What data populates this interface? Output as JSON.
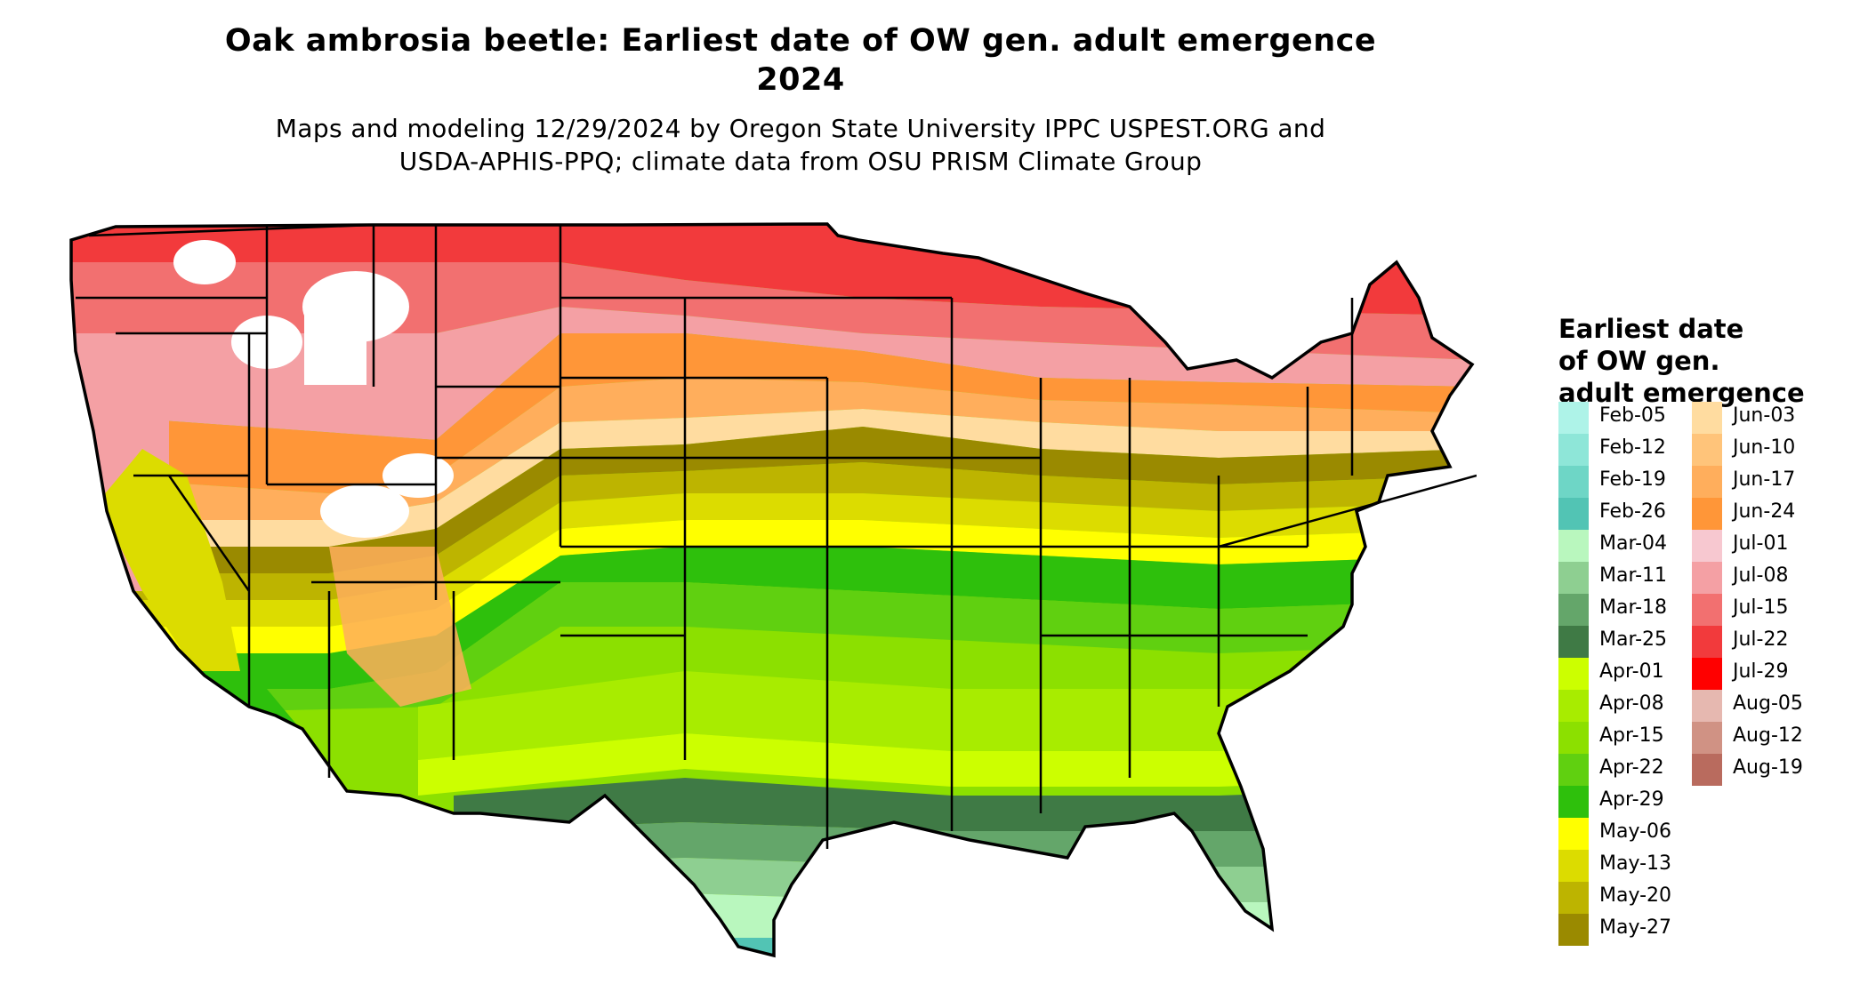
{
  "title_line1": "Oak ambrosia beetle: Earliest date of OW gen. adult emergence",
  "title_line2": "2024",
  "subtitle_line1": "Maps and modeling 12/29/2024 by Oregon State University IPPC USPEST.ORG and",
  "subtitle_line2": "USDA-APHIS-PPQ; climate data from OSU PRISM Climate Group",
  "legend": {
    "title_line1": "Earliest date",
    "title_line2": "of OW gen.",
    "title_line3": "adult emergence",
    "items": [
      {
        "label": "Feb-05",
        "color": "#aef3e8"
      },
      {
        "label": "Feb-12",
        "color": "#8ee6d8"
      },
      {
        "label": "Feb-19",
        "color": "#6ed6c6"
      },
      {
        "label": "Feb-26",
        "color": "#52c4b4"
      },
      {
        "label": "Mar-04",
        "color": "#b9f7be"
      },
      {
        "label": "Mar-11",
        "color": "#8ecf91"
      },
      {
        "label": "Mar-18",
        "color": "#64a66a"
      },
      {
        "label": "Mar-25",
        "color": "#3f7a45"
      },
      {
        "label": "Apr-01",
        "color": "#ccff00"
      },
      {
        "label": "Apr-08",
        "color": "#a8ec00"
      },
      {
        "label": "Apr-15",
        "color": "#8ce000"
      },
      {
        "label": "Apr-22",
        "color": "#60d010"
      },
      {
        "label": "Apr-29",
        "color": "#2ec00c"
      },
      {
        "label": "May-06",
        "color": "#ffff00"
      },
      {
        "label": "May-13",
        "color": "#dcdc00"
      },
      {
        "label": "May-20",
        "color": "#bdb400"
      },
      {
        "label": "May-27",
        "color": "#9a8a00"
      },
      {
        "label": "Jun-03",
        "color": "#ffdca0"
      },
      {
        "label": "Jun-10",
        "color": "#ffc47a"
      },
      {
        "label": "Jun-17",
        "color": "#ffae5c"
      },
      {
        "label": "Jun-24",
        "color": "#ff9638"
      },
      {
        "label": "Jul-01",
        "color": "#f7c8d0"
      },
      {
        "label": "Jul-08",
        "color": "#f4a0a4"
      },
      {
        "label": "Jul-15",
        "color": "#f27070"
      },
      {
        "label": "Jul-22",
        "color": "#f23a3c"
      },
      {
        "label": "Jul-29",
        "color": "#ff0000"
      },
      {
        "label": "Aug-05",
        "color": "#e6b8b0"
      },
      {
        "label": "Aug-12",
        "color": "#d09284"
      },
      {
        "label": "Aug-19",
        "color": "#b96b5e"
      }
    ]
  }
}
